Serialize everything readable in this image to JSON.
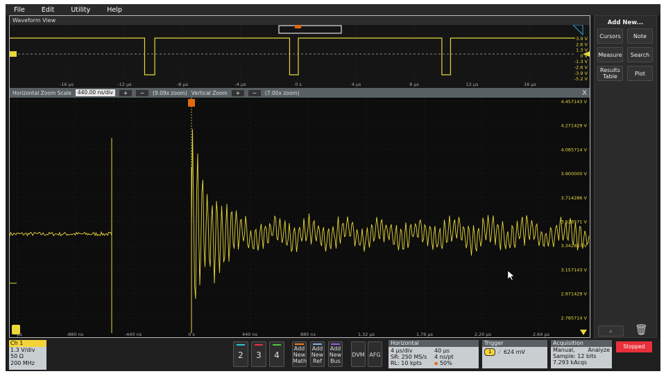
{
  "menu": [
    "File",
    "Edit",
    "Utility",
    "Help"
  ],
  "waveform_view": {
    "title": "Waveform View"
  },
  "overview": {
    "x_ticks": [
      "-16 µs",
      "-12 µs",
      "-8 µs",
      "-4 µs",
      "0 s",
      "4 µs",
      "8 µs",
      "12 µs",
      "16 µs"
    ],
    "y_ticks": [
      "3.9 V",
      "2.6 V",
      "1.3 V",
      "0 V",
      "-1.3 V",
      "-2.6 V",
      "-3.9 V",
      "-5.2 V"
    ],
    "channel_marker": "C1",
    "trigger_marker": "T"
  },
  "zoom_bar": {
    "h_label": "Horizontal Zoom Scale",
    "h_value": "440.00 ns/div",
    "h_zoom": "(9.09x zoom)",
    "v_label": "Vertical Zoom",
    "v_zoom": "(7.00x zoom)",
    "plus": "+",
    "minus": "−",
    "close": "X"
  },
  "main_plot": {
    "x_ticks": [
      "µs",
      "-880 ns",
      "-440 ns",
      "0 s",
      "440 ns",
      "880 ns",
      "1.32 µs",
      "1.76 µs",
      "2.20 µs",
      "2.64 µs"
    ],
    "y_ticks": [
      "4.457143 V",
      "4.271429 V",
      "4.085714 V",
      "3.900000 V",
      "3.714286 V",
      "3.528571 V",
      "3.342857 V",
      "3.157143 V",
      "2.971429 V",
      "2.785714 V"
    ],
    "trace_color": "#e8d83a"
  },
  "right_panel": {
    "title": "Add New...",
    "buttons": [
      "Cursors",
      "Note",
      "Measure",
      "Search",
      "Results Table",
      "Plot"
    ]
  },
  "bottom": {
    "ch1": {
      "name": "Ch 1",
      "vdiv": "1.3 V/div",
      "imp": "50 Ω",
      "bw": "200 MHz"
    },
    "channels": [
      {
        "label": "2",
        "color": "#2fc9d6"
      },
      {
        "label": "3",
        "color": "#e8304f"
      },
      {
        "label": "4",
        "color": "#4fc93a"
      }
    ],
    "add": [
      {
        "label": "Add New Math",
        "color": "#f07a20"
      },
      {
        "label": "Add New Ref",
        "color": "#8ab0e0"
      },
      {
        "label": "Add New Bus",
        "color": "#9a5ae0"
      }
    ],
    "dvm": "DVM",
    "afg": "AFG",
    "horizontal": {
      "title": "Horizontal",
      "scale": "4 µs/div",
      "sr": "SR: 250 MS/s",
      "rl": "RL: 10 kpts",
      "dur": "40 µs",
      "res": "4 ns/pt",
      "pos": "50%"
    },
    "trigger": {
      "title": "Trigger",
      "source": "1",
      "level": "624 mV"
    },
    "acquisition": {
      "title": "Acquisition",
      "mode": "Manual,",
      "analyze": "Analyze",
      "sample": "Sample: 12 bits",
      "acqs": "7.293 kAcqs"
    },
    "status": "Stopped"
  }
}
